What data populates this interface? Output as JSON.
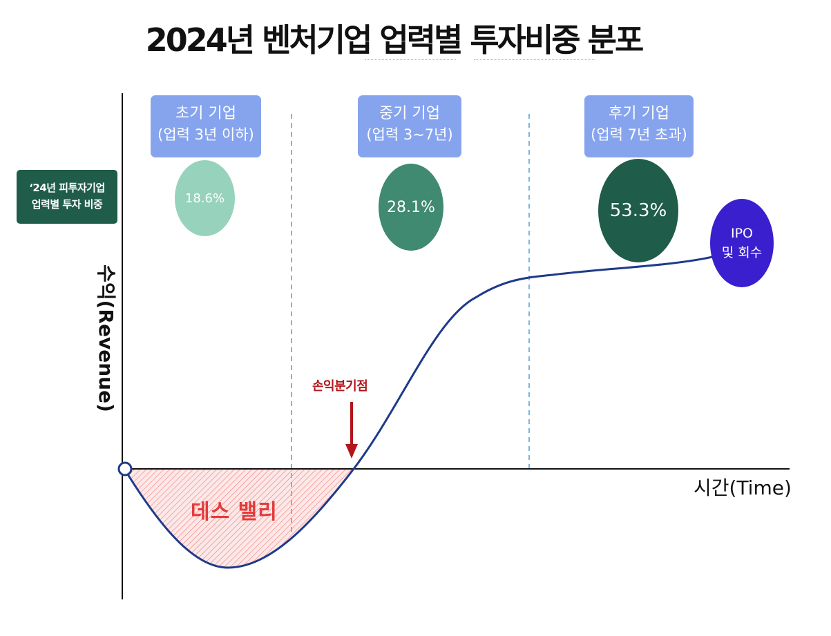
{
  "title": "2024년 벤처기업 업력별 투자비중 분포",
  "badge": {
    "line1": "‘24년 피투자기업",
    "line2": "업력별 투자 비중",
    "color": "#1f5c4a"
  },
  "stages": [
    {
      "name": "초기 기업",
      "sub": "(업력 3년 이하)",
      "share": "18.6%",
      "label_color": "#86a4ee",
      "bubble_color": "#97d2bd"
    },
    {
      "name": "중기 기업",
      "sub": "(업력 3~7년)",
      "share": "28.1%",
      "label_color": "#86a4ee",
      "bubble_color": "#3f8a70"
    },
    {
      "name": "후기 기업",
      "sub": "(업력 7년 초과)",
      "share": "53.3%",
      "label_color": "#86a4ee",
      "bubble_color": "#1f5c4a"
    }
  ],
  "ipo": {
    "line1": "IPO",
    "line2": "및 회수",
    "color": "#3a1fcf"
  },
  "axes": {
    "y_label": "수익(Revenue)",
    "x_label": "시간(Time)"
  },
  "annotations": {
    "death_valley": "데스 밸리",
    "break_even": "손익분기점"
  },
  "colors": {
    "curve": "#1e3a8a",
    "arrow": "#b3151c",
    "divider": "#7ab6e0",
    "valley_hatch": "#f07a7a"
  }
}
